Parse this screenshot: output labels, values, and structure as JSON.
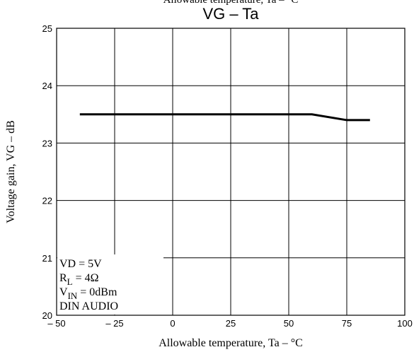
{
  "chart_data": {
    "type": "line",
    "cropped_top_text": "Allowable temperature, Ta  –  °C",
    "title": "VG  –  Ta",
    "x_label": "Allowable temperature, Ta  –  °C",
    "y_label": "Voltage gain, VG  –  dB",
    "x": [
      -40,
      60,
      75,
      85
    ],
    "series": [
      {
        "color": "#000000",
        "values": [
          23.5,
          23.5,
          23.4,
          23.4
        ]
      }
    ],
    "xlim": [
      -50,
      100
    ],
    "xticks": [
      {
        "value": -50,
        "label": "– 50"
      },
      {
        "value": -25,
        "label": "– 25"
      },
      0,
      25,
      50,
      75,
      100
    ],
    "ylim": [
      20,
      25
    ],
    "yticks": [
      20,
      21,
      22,
      23,
      24,
      25
    ],
    "grid": true,
    "conditions": [
      {
        "text": "VD = 5V"
      },
      {
        "text": "R",
        "sub": "L",
        "rest": " = 4Ω"
      },
      {
        "text": "V",
        "sub": "IN",
        "rest": " = 0dBm"
      },
      {
        "text": "DIN AUDIO"
      }
    ]
  }
}
